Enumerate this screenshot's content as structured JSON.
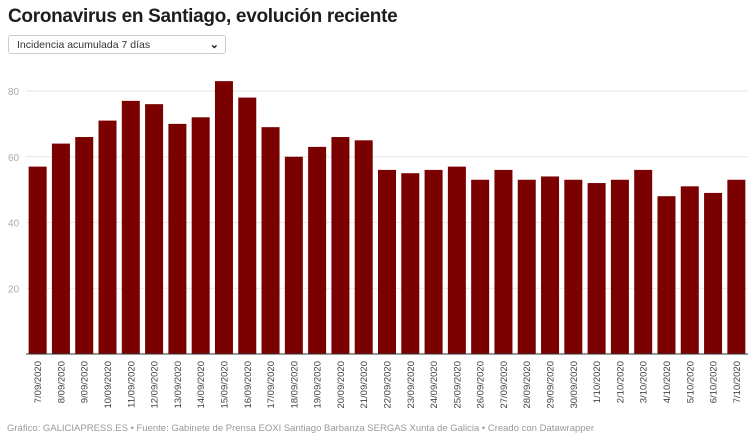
{
  "header": {
    "title": "Coronavirus en Santiago, evolución reciente"
  },
  "dropdown": {
    "selected": "Incidencia acumulada 7 días",
    "icon": "chevron-down-icon"
  },
  "footer": {
    "text": "Gráfico: GALICIAPRESS.ES • Fuente: Gabinete de Prensa EOXI Santiago Barbanza SERGAS Xunta de Galicia • Creado con Datawrapper"
  },
  "chart_data": {
    "type": "bar",
    "title": "Coronavirus en Santiago, evolución reciente",
    "categories": [
      "7/09/2020",
      "8/09/2020",
      "9/09/2020",
      "10/09/2020",
      "11/09/2020",
      "12/09/2020",
      "13/09/2020",
      "14/09/2020",
      "15/09/2020",
      "16/09/2020",
      "17/09/2020",
      "18/09/2020",
      "19/09/2020",
      "20/09/2020",
      "21/09/2020",
      "22/09/2020",
      "23/09/2020",
      "24/09/2020",
      "25/09/2020",
      "26/09/2020",
      "27/09/2020",
      "28/09/2020",
      "29/09/2020",
      "30/09/2020",
      "1/10/2020",
      "2/10/2020",
      "3/10/2020",
      "4/10/2020",
      "5/10/2020",
      "6/10/2020",
      "7/10/2020"
    ],
    "values": [
      57,
      64,
      66,
      71,
      77,
      76,
      70,
      72,
      83,
      78,
      69,
      60,
      63,
      66,
      65,
      56,
      55,
      56,
      57,
      53,
      56,
      53,
      54,
      53,
      52,
      53,
      56,
      48,
      51,
      49,
      53
    ],
    "yticks": [
      20,
      40,
      60,
      80
    ],
    "ylim": [
      0,
      80
    ],
    "grid": true,
    "bar_color": "#7b0000"
  }
}
